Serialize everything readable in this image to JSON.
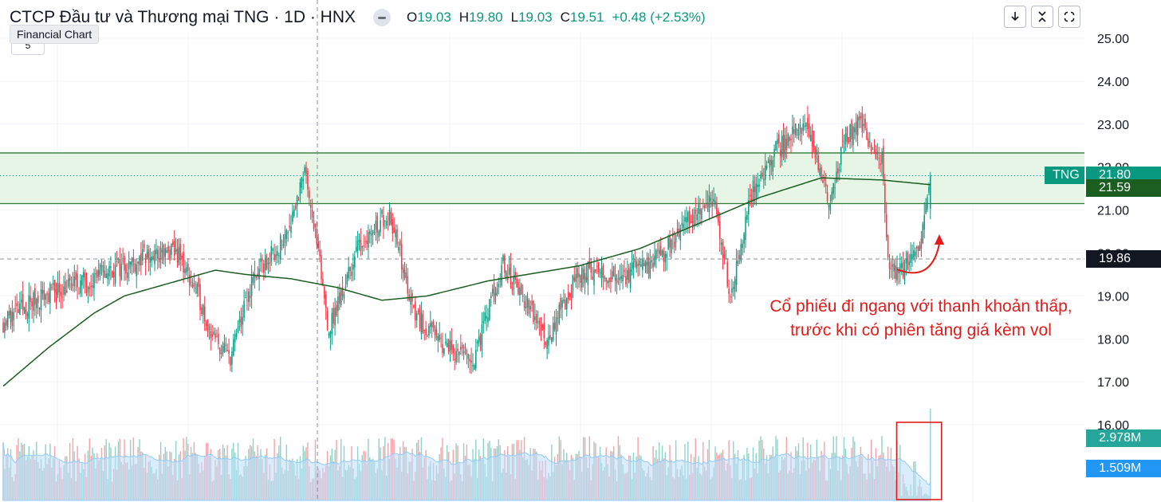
{
  "header": {
    "title": "CTCP Đầu tư và Thương mại TNG · 1D · HNX",
    "open_label": "O",
    "open": "19.03",
    "high_label": "H",
    "high": "19.80",
    "low_label": "L",
    "low": "19.03",
    "close_label": "C",
    "close": "19.51",
    "change": "+0.48 (+2.53%)"
  },
  "tooltip": "Financial Chart",
  "subbox_text": "5",
  "toolbar": {
    "icons": [
      "download-icon",
      "collapse-icon",
      "fullscreen-icon"
    ]
  },
  "annotation": {
    "line1": "Cổ phiếu đi ngang với thanh khoản thấp,",
    "line2": "trước khi có phiên tăng giá kèm vol"
  },
  "price_badges": {
    "symbol": "TNG",
    "last": "21.80",
    "ma": "21.59",
    "crosshair": "19.86",
    "volume": "2.978M",
    "volume_ma": "1.509M"
  },
  "colors": {
    "up": "#089981",
    "down": "#f23645",
    "ma": "#1b5e20",
    "zone": "#e6f5e6",
    "zone_line": "#2e7d32",
    "volume_area": "#bbdefb",
    "annotation": "#e31b1b",
    "volume_ma_badge": "#2196f3"
  },
  "chart_data": {
    "type": "candlestick",
    "y_axis": {
      "ticks": [
        25,
        24,
        23,
        22,
        21,
        20,
        19,
        18,
        17,
        16
      ],
      "tick_labels": [
        "25.00",
        "24.00",
        "23.00",
        "22.00",
        "21.00",
        "20.00",
        "19.00",
        "18.00",
        "17.00",
        "16.00"
      ]
    },
    "resistance_zone": [
      21.15,
      22.33
    ],
    "last_price": 21.8,
    "ma_value": 21.59,
    "crosshair_price": 19.86,
    "ma_anchors": [
      [
        0,
        16.9
      ],
      [
        30,
        17.8
      ],
      [
        60,
        18.6
      ],
      [
        80,
        19.0
      ],
      [
        110,
        19.3
      ],
      [
        140,
        19.6
      ],
      [
        160,
        19.5
      ],
      [
        190,
        19.4
      ],
      [
        220,
        19.2
      ],
      [
        250,
        18.9
      ],
      [
        280,
        19.0
      ],
      [
        320,
        19.35
      ],
      [
        380,
        19.7
      ],
      [
        420,
        20.1
      ],
      [
        460,
        20.7
      ],
      [
        500,
        21.3
      ],
      [
        540,
        21.75
      ],
      [
        580,
        21.7
      ],
      [
        612,
        21.59
      ]
    ],
    "candle_anchors": [
      [
        0,
        18.4
      ],
      [
        25,
        19.0
      ],
      [
        50,
        19.3
      ],
      [
        70,
        19.6
      ],
      [
        95,
        19.9
      ],
      [
        115,
        20.0
      ],
      [
        130,
        18.9
      ],
      [
        140,
        17.9
      ],
      [
        150,
        17.6
      ],
      [
        165,
        19.4
      ],
      [
        185,
        20.3
      ],
      [
        200,
        21.9
      ],
      [
        215,
        18.2
      ],
      [
        235,
        20.2
      ],
      [
        255,
        21.0
      ],
      [
        270,
        18.7
      ],
      [
        285,
        18.0
      ],
      [
        310,
        17.5
      ],
      [
        330,
        19.7
      ],
      [
        345,
        18.8
      ],
      [
        360,
        18.0
      ],
      [
        375,
        19.2
      ],
      [
        385,
        19.6
      ],
      [
        400,
        19.4
      ],
      [
        420,
        19.6
      ],
      [
        435,
        20.0
      ],
      [
        450,
        20.7
      ],
      [
        470,
        21.2
      ],
      [
        480,
        19.0
      ],
      [
        495,
        21.5
      ],
      [
        510,
        22.4
      ],
      [
        530,
        23.0
      ],
      [
        545,
        21.2
      ],
      [
        555,
        22.6
      ],
      [
        565,
        23.0
      ],
      [
        580,
        22.2
      ],
      [
        585,
        19.5
      ],
      [
        595,
        19.7
      ],
      [
        605,
        20.1
      ],
      [
        612,
        21.8
      ]
    ],
    "volume": {
      "max_axis": 3.5,
      "current": 2.978,
      "ma": 1.509,
      "highlight_box": [
        595,
        612
      ]
    }
  }
}
